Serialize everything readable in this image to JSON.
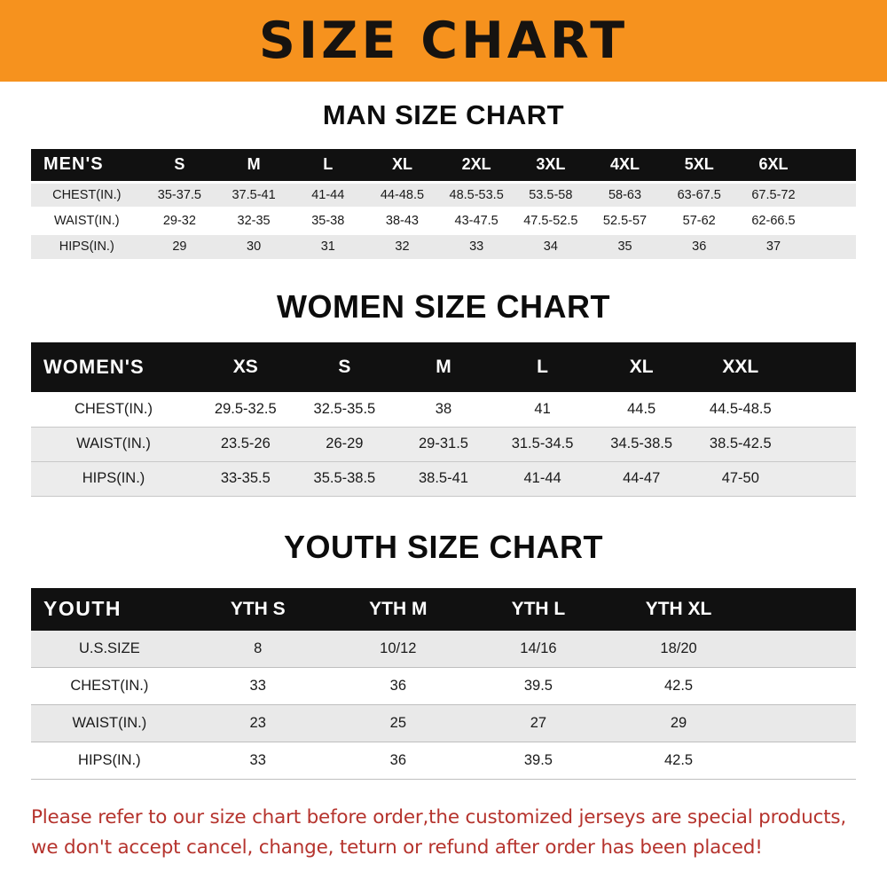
{
  "banner": {
    "title": "SIZE CHART"
  },
  "sections": [
    {
      "heading": "MAN SIZE CHART"
    },
    {
      "heading": "WOMEN SIZE CHART"
    },
    {
      "heading": "YOUTH SIZE CHART"
    }
  ],
  "chart_data": [
    {
      "type": "table",
      "title": "MAN SIZE CHART",
      "columns": [
        "MEN'S",
        "S",
        "M",
        "L",
        "XL",
        "2XL",
        "3XL",
        "4XL",
        "5XL",
        "6XL"
      ],
      "rows": [
        [
          "CHEST(IN.)",
          "35-37.5",
          "37.5-41",
          "41-44",
          "44-48.5",
          "48.5-53.5",
          "53.5-58",
          "58-63",
          "63-67.5",
          "67.5-72"
        ],
        [
          "WAIST(IN.)",
          "29-32",
          "32-35",
          "35-38",
          "38-43",
          "43-47.5",
          "47.5-52.5",
          "52.5-57",
          "57-62",
          "62-66.5"
        ],
        [
          "HIPS(IN.)",
          "29",
          "30",
          "31",
          "32",
          "33",
          "34",
          "35",
          "36",
          "37"
        ]
      ]
    },
    {
      "type": "table",
      "title": "WOMEN SIZE CHART",
      "columns": [
        "WOMEN'S",
        "XS",
        "S",
        "M",
        "L",
        "XL",
        "XXL"
      ],
      "rows": [
        [
          "CHEST(IN.)",
          "29.5-32.5",
          "32.5-35.5",
          "38",
          "41",
          "44.5",
          "44.5-48.5"
        ],
        [
          "WAIST(IN.)",
          "23.5-26",
          "26-29",
          "29-31.5",
          "31.5-34.5",
          "34.5-38.5",
          "38.5-42.5"
        ],
        [
          "HIPS(IN.)",
          "33-35.5",
          "35.5-38.5",
          "38.5-41",
          "41-44",
          "44-47",
          "47-50"
        ]
      ]
    },
    {
      "type": "table",
      "title": "YOUTH SIZE CHART",
      "columns": [
        "YOUTH",
        "YTH S",
        "YTH M",
        "YTH L",
        "YTH XL"
      ],
      "rows": [
        [
          "U.S.SIZE",
          "8",
          "10/12",
          "14/16",
          "18/20"
        ],
        [
          "CHEST(IN.)",
          "33",
          "36",
          "39.5",
          "42.5"
        ],
        [
          "WAIST(IN.)",
          "23",
          "25",
          "27",
          "29"
        ],
        [
          "HIPS(IN.)",
          "33",
          "36",
          "39.5",
          "42.5"
        ]
      ]
    }
  ],
  "footer": {
    "line1": "Please refer to our size chart before order,the customized jerseys are special products,",
    "line2": "we don't accept cancel, change, teturn or refund after order has been placed!"
  },
  "colors": {
    "banner_bg": "#F6921E",
    "table_header_bg": "#111111",
    "row_stripe_gray": "#e9e9e9",
    "footer_text": "#b5332d"
  }
}
